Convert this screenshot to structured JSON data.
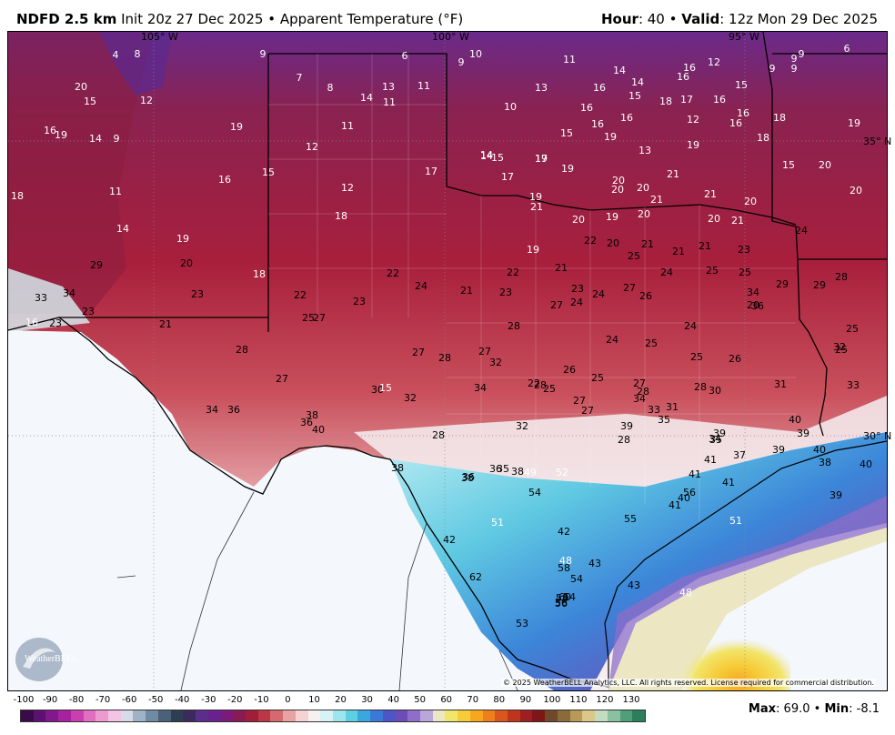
{
  "header": {
    "product": "NDFD 2.5 km",
    "init": "Init 20z 27 Dec 2025",
    "sep": "•",
    "field": "Apparent Temperature (°F)",
    "hour_label": "Hour",
    "hour_value": "40",
    "valid_label": "Valid",
    "valid_value": "12z Mon 29 Dec 2025"
  },
  "map": {
    "lon_labels": [
      "105° W",
      "100° W",
      "95° W"
    ],
    "lat_labels": [
      "35° N",
      "30° N"
    ],
    "copyright": "© 2025 WeatherBELL Analytics, LLC. All rights reserved. License required for commercial distribution.",
    "logo_text": "WeatherBELL",
    "temperature_labels": [
      {
        "v": "4",
        "c": "w"
      },
      {
        "v": "8",
        "c": "w"
      },
      {
        "v": "9",
        "c": "w"
      },
      {
        "v": "6",
        "c": "w"
      },
      {
        "v": "9",
        "c": "w"
      },
      {
        "v": "10",
        "c": "w"
      },
      {
        "v": "11",
        "c": "w"
      },
      {
        "v": "14",
        "c": "w"
      },
      {
        "v": "16",
        "c": "w"
      },
      {
        "v": "12",
        "c": "w"
      },
      {
        "v": "9",
        "c": "w"
      },
      {
        "v": "9",
        "c": "w"
      },
      {
        "v": "9",
        "c": "w"
      },
      {
        "v": "6",
        "c": "w"
      },
      {
        "v": "20",
        "c": "w"
      },
      {
        "v": "7",
        "c": "w"
      },
      {
        "v": "8",
        "c": "w"
      },
      {
        "v": "13",
        "c": "w"
      },
      {
        "v": "11",
        "c": "w"
      },
      {
        "v": "13",
        "c": "w"
      },
      {
        "v": "16",
        "c": "w"
      },
      {
        "v": "14",
        "c": "w"
      },
      {
        "v": "16",
        "c": "w"
      },
      {
        "v": "15",
        "c": "w"
      },
      {
        "v": "9",
        "c": "w"
      },
      {
        "v": "15",
        "c": "w"
      },
      {
        "v": "12",
        "c": "w"
      },
      {
        "v": "14",
        "c": "w"
      },
      {
        "v": "11",
        "c": "w"
      },
      {
        "v": "15",
        "c": "w"
      },
      {
        "v": "17",
        "c": "w"
      },
      {
        "v": "16",
        "c": "w"
      },
      {
        "v": "10",
        "c": "w"
      },
      {
        "v": "16",
        "c": "w"
      },
      {
        "v": "16",
        "c": "w"
      },
      {
        "v": "18",
        "c": "w"
      },
      {
        "v": "12",
        "c": "w"
      },
      {
        "v": "16",
        "c": "w"
      },
      {
        "v": "18",
        "c": "w"
      },
      {
        "v": "16",
        "c": "w"
      },
      {
        "v": "19",
        "c": "w"
      },
      {
        "v": "14",
        "c": "w"
      },
      {
        "v": "9",
        "c": "w"
      },
      {
        "v": "19",
        "c": "w"
      },
      {
        "v": "11",
        "c": "w"
      },
      {
        "v": "15",
        "c": "w"
      },
      {
        "v": "16",
        "c": "w"
      },
      {
        "v": "19",
        "c": "w"
      },
      {
        "v": "13",
        "c": "w"
      },
      {
        "v": "19",
        "c": "w"
      },
      {
        "v": "16",
        "c": "w"
      },
      {
        "v": "18",
        "c": "w"
      },
      {
        "v": "12",
        "c": "w"
      },
      {
        "v": "14",
        "c": "w"
      },
      {
        "v": "15",
        "c": "w"
      },
      {
        "v": "17",
        "c": "w"
      },
      {
        "v": "19",
        "c": "w"
      },
      {
        "v": "19",
        "c": "w"
      },
      {
        "v": "14",
        "c": "w"
      },
      {
        "v": "17",
        "c": "w"
      },
      {
        "v": "17",
        "c": "w"
      },
      {
        "v": "19",
        "c": "w"
      },
      {
        "v": "20",
        "c": "w"
      },
      {
        "v": "21",
        "c": "w"
      },
      {
        "v": "15",
        "c": "w"
      },
      {
        "v": "20",
        "c": "w"
      },
      {
        "v": "20",
        "c": "w"
      },
      {
        "v": "18",
        "c": "w"
      },
      {
        "v": "11",
        "c": "w"
      },
      {
        "v": "16",
        "c": "w"
      },
      {
        "v": "15",
        "c": "w"
      },
      {
        "v": "12",
        "c": "w"
      },
      {
        "v": "19",
        "c": "w"
      },
      {
        "v": "20",
        "c": "w"
      },
      {
        "v": "21",
        "c": "w"
      },
      {
        "v": "21",
        "c": "w"
      },
      {
        "v": "20",
        "c": "w"
      },
      {
        "v": "20",
        "c": "w"
      },
      {
        "v": "14",
        "c": "w"
      },
      {
        "v": "18",
        "c": "w"
      },
      {
        "v": "21",
        "c": "w"
      },
      {
        "v": "20",
        "c": "w"
      },
      {
        "v": "19",
        "c": "w"
      },
      {
        "v": "20",
        "c": "w"
      },
      {
        "v": "20",
        "c": "w"
      },
      {
        "v": "21",
        "c": "w"
      },
      {
        "v": "24",
        "c": "b"
      },
      {
        "v": "19",
        "c": "w"
      },
      {
        "v": "19",
        "c": "w"
      },
      {
        "v": "22",
        "c": "b"
      },
      {
        "v": "20",
        "c": "b"
      },
      {
        "v": "21",
        "c": "b"
      },
      {
        "v": "21",
        "c": "b"
      },
      {
        "v": "21",
        "c": "b"
      },
      {
        "v": "23",
        "c": "b"
      },
      {
        "v": "29",
        "c": "b"
      },
      {
        "v": "20",
        "c": "b"
      },
      {
        "v": "22",
        "c": "b"
      },
      {
        "v": "25",
        "c": "b"
      },
      {
        "v": "22",
        "c": "b"
      },
      {
        "v": "21",
        "c": "b"
      },
      {
        "v": "24",
        "c": "b"
      },
      {
        "v": "25",
        "c": "b"
      },
      {
        "v": "25",
        "c": "b"
      },
      {
        "v": "29",
        "c": "b"
      },
      {
        "v": "28",
        "c": "b"
      },
      {
        "v": "33",
        "c": "b"
      },
      {
        "v": "34",
        "c": "b"
      },
      {
        "v": "23",
        "c": "b"
      },
      {
        "v": "18",
        "c": "w"
      },
      {
        "v": "22",
        "c": "b"
      },
      {
        "v": "23",
        "c": "b"
      },
      {
        "v": "24",
        "c": "b"
      },
      {
        "v": "21",
        "c": "b"
      },
      {
        "v": "23",
        "c": "b"
      },
      {
        "v": "23",
        "c": "b"
      },
      {
        "v": "24",
        "c": "b"
      },
      {
        "v": "27",
        "c": "b"
      },
      {
        "v": "26",
        "c": "b"
      },
      {
        "v": "34",
        "c": "b"
      },
      {
        "v": "36",
        "c": "b"
      },
      {
        "v": "29",
        "c": "b"
      },
      {
        "v": "16",
        "c": "w"
      },
      {
        "v": "23",
        "c": "b"
      },
      {
        "v": "23",
        "c": "b"
      },
      {
        "v": "21",
        "c": "b"
      },
      {
        "v": "25",
        "c": "b"
      },
      {
        "v": "27",
        "c": "b"
      },
      {
        "v": "28",
        "c": "b"
      },
      {
        "v": "27",
        "c": "b"
      },
      {
        "v": "24",
        "c": "b"
      },
      {
        "v": "24",
        "c": "b"
      },
      {
        "v": "25",
        "c": "b"
      },
      {
        "v": "24",
        "c": "b"
      },
      {
        "v": "20",
        "c": "b"
      },
      {
        "v": "25",
        "c": "b"
      },
      {
        "v": "27",
        "c": "b"
      },
      {
        "v": "28",
        "c": "b"
      },
      {
        "v": "27",
        "c": "b"
      },
      {
        "v": "28",
        "c": "b"
      },
      {
        "v": "32",
        "c": "b"
      },
      {
        "v": "26",
        "c": "b"
      },
      {
        "v": "25",
        "c": "b"
      },
      {
        "v": "26",
        "c": "b"
      },
      {
        "v": "25",
        "c": "b"
      },
      {
        "v": "27",
        "c": "b"
      },
      {
        "v": "30",
        "c": "b"
      },
      {
        "v": "32",
        "c": "b"
      },
      {
        "v": "34",
        "c": "b"
      },
      {
        "v": "28",
        "c": "b"
      },
      {
        "v": "25",
        "c": "b"
      },
      {
        "v": "25",
        "c": "b"
      },
      {
        "v": "27",
        "c": "b"
      },
      {
        "v": "28",
        "c": "b"
      },
      {
        "v": "30",
        "c": "b"
      },
      {
        "v": "32",
        "c": "b"
      },
      {
        "v": "34",
        "c": "b"
      },
      {
        "v": "36",
        "c": "b"
      },
      {
        "v": "38",
        "c": "b"
      },
      {
        "v": "15",
        "c": "w"
      },
      {
        "v": "22",
        "c": "b"
      },
      {
        "v": "27",
        "c": "b"
      },
      {
        "v": "34",
        "c": "b"
      },
      {
        "v": "31",
        "c": "b"
      },
      {
        "v": "31",
        "c": "b"
      },
      {
        "v": "33",
        "c": "b"
      },
      {
        "v": "36",
        "c": "b"
      },
      {
        "v": "40",
        "c": "b"
      },
      {
        "v": "28",
        "c": "b"
      },
      {
        "v": "32",
        "c": "b"
      },
      {
        "v": "28",
        "c": "b"
      },
      {
        "v": "27",
        "c": "b"
      },
      {
        "v": "33",
        "c": "b"
      },
      {
        "v": "34",
        "c": "b"
      },
      {
        "v": "37",
        "c": "b"
      },
      {
        "v": "39",
        "c": "b"
      },
      {
        "v": "39",
        "c": "b"
      },
      {
        "v": "39",
        "c": "b"
      },
      {
        "v": "40",
        "c": "b"
      },
      {
        "v": "28",
        "c": "b"
      },
      {
        "v": "35",
        "c": "b"
      },
      {
        "v": "35",
        "c": "b"
      },
      {
        "v": "39",
        "c": "b"
      },
      {
        "v": "41",
        "c": "b"
      },
      {
        "v": "41",
        "c": "b"
      },
      {
        "v": "41",
        "c": "b"
      },
      {
        "v": "40",
        "c": "b"
      },
      {
        "v": "36",
        "c": "b"
      },
      {
        "v": "38",
        "c": "b"
      },
      {
        "v": "35",
        "c": "b"
      },
      {
        "v": "36",
        "c": "b"
      },
      {
        "v": "38",
        "c": "b"
      },
      {
        "v": "49",
        "c": "w"
      },
      {
        "v": "52",
        "c": "w"
      },
      {
        "v": "38",
        "c": "b"
      },
      {
        "v": "40",
        "c": "b"
      },
      {
        "v": "38",
        "c": "b"
      },
      {
        "v": "41",
        "c": "b"
      },
      {
        "v": "40",
        "c": "b"
      },
      {
        "v": "54",
        "c": "b"
      },
      {
        "v": "56",
        "c": "b"
      },
      {
        "v": "55",
        "c": "b"
      },
      {
        "v": "51",
        "c": "w"
      },
      {
        "v": "39",
        "c": "b"
      },
      {
        "v": "51",
        "c": "w"
      },
      {
        "v": "42",
        "c": "b"
      },
      {
        "v": "42",
        "c": "b"
      },
      {
        "v": "48",
        "c": "w"
      },
      {
        "v": "58",
        "c": "b"
      },
      {
        "v": "54",
        "c": "b"
      },
      {
        "v": "43",
        "c": "b"
      },
      {
        "v": "43",
        "c": "b"
      },
      {
        "v": "48",
        "c": "w"
      },
      {
        "v": "62",
        "c": "b"
      },
      {
        "v": "53",
        "c": "b"
      },
      {
        "v": "54",
        "c": "b"
      },
      {
        "v": "56",
        "c": "b"
      },
      {
        "v": "56",
        "c": "b"
      },
      {
        "v": "58",
        "c": "b"
      },
      {
        "v": "60",
        "c": "b"
      }
    ]
  },
  "colorbar": {
    "ticks": [
      "-100",
      "-90",
      "-80",
      "-70",
      "-60",
      "-50",
      "-40",
      "-30",
      "-20",
      "-10",
      "0",
      "10",
      "20",
      "30",
      "40",
      "50",
      "60",
      "70",
      "80",
      "90",
      "100",
      "110",
      "120",
      "130"
    ],
    "colors": [
      "#3b0a4a",
      "#5c1170",
      "#82188e",
      "#a8219e",
      "#c93fae",
      "#e06fbf",
      "#ee9ad2",
      "#f4c4e4",
      "#d7dbe8",
      "#9fb3c8",
      "#6f8aa2",
      "#4a6178",
      "#2d3e52",
      "#3c2a5a",
      "#5b2e8a",
      "#6b2090",
      "#7a1a7a",
      "#8a1a52",
      "#a11d3c",
      "#bd3646",
      "#d46a6f",
      "#e8a2a2",
      "#f5d3d3",
      "#f6f0f0",
      "#d8f3f5",
      "#9ee6ee",
      "#5fd0e4",
      "#3aa7df",
      "#3b79d8",
      "#4c56c6",
      "#6d4cb8",
      "#8e6ec8",
      "#b9a7dc",
      "#ece7c2",
      "#f2e56a",
      "#f6cc3a",
      "#f7a71e",
      "#ef7f1b",
      "#d9571c",
      "#bf351c",
      "#9e1f1f",
      "#7f1616",
      "#6f4a2a",
      "#8b6b3a",
      "#b89a58",
      "#d9c889",
      "#c2dcc0",
      "#89c2a0",
      "#4fa07a",
      "#2b7f5a"
    ]
  },
  "stats": {
    "max_label": "Max",
    "max_value": "69.0",
    "min_label": "Min",
    "min_value": "-8.1"
  }
}
